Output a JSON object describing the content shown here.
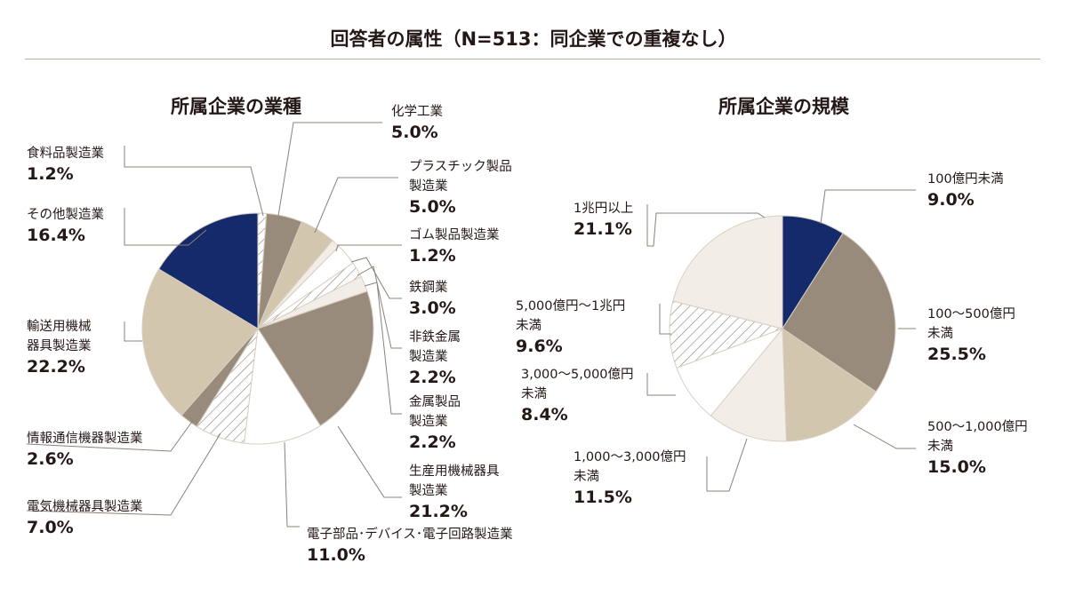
{
  "title": "回答者の属性（N=513：同企業での重複なし）",
  "chart_data": [
    {
      "type": "pie",
      "title": "所属企業の業種",
      "slices": [
        {
          "name": "食料品製造業",
          "value": 1.2,
          "fill": "hatch"
        },
        {
          "name": "化学工業",
          "value": 5.0,
          "fill": "#998b7b"
        },
        {
          "name": "プラスチック製品\n製造業",
          "value": 5.0,
          "fill": "#d2c7ae"
        },
        {
          "name": "ゴム製品製造業",
          "value": 1.2,
          "fill": "#f2ede6"
        },
        {
          "name": "鉄鋼業",
          "value": 3.0,
          "fill": "#ffffff"
        },
        {
          "name": "非鉄金属\n製造業",
          "value": 2.2,
          "fill": "hatch"
        },
        {
          "name": "金属製品\n製造業",
          "value": 2.2,
          "fill": "#f2ede6"
        },
        {
          "name": "生産用機械器具\n製造業",
          "value": 21.2,
          "fill": "#998b7b"
        },
        {
          "name": "電子部品･デバイス･電子回路製造業",
          "value": 11.0,
          "fill": "#ffffff"
        },
        {
          "name": "電気機械器具製造業",
          "value": 7.0,
          "fill": "hatch"
        },
        {
          "name": "情報通信機器製造業",
          "value": 2.6,
          "fill": "#998b7b"
        },
        {
          "name": "輸送用機械\n器具製造業",
          "value": 22.2,
          "fill": "#d2c7ae"
        },
        {
          "name": "その他製造業",
          "value": 16.4,
          "fill": "#152a6b"
        }
      ]
    },
    {
      "type": "pie",
      "title": "所属企業の規模",
      "slices": [
        {
          "name": "100億円未満",
          "value": 9.0,
          "fill": "#152a6b"
        },
        {
          "name": "100～500億円\n未満",
          "value": 25.5,
          "fill": "#998b7b"
        },
        {
          "name": "500～1,000億円\n未満",
          "value": 15.0,
          "fill": "#d2c7ae"
        },
        {
          "name": "1,000～3,000億円\n未満",
          "value": 11.5,
          "fill": "#f2ede6"
        },
        {
          "name": "3,000～5,000億円\n未満",
          "value": 8.4,
          "fill": "#ffffff"
        },
        {
          "name": "5,000億円～1兆円\n未満",
          "value": 9.6,
          "fill": "hatch"
        },
        {
          "name": "1兆円以上",
          "value": 21.1,
          "fill": "#f2ede6"
        }
      ]
    }
  ]
}
